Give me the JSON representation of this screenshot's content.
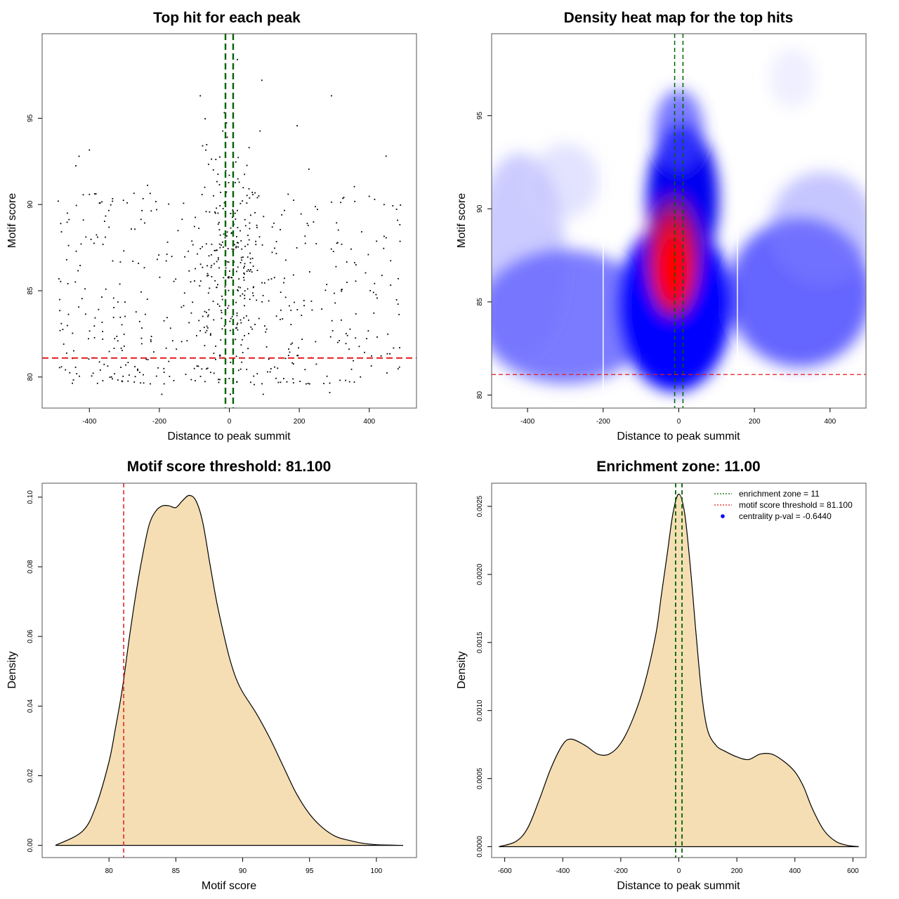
{
  "chart_data": [
    {
      "type": "scatter",
      "title": "Top hit for each peak",
      "xlabel": "Distance to peak summit",
      "ylabel": "Motif score",
      "xlim": [
        -535,
        535
      ],
      "ylim": [
        78.2,
        99.9
      ],
      "xticks": [
        "-400",
        "-200",
        "0",
        "200",
        "400"
      ],
      "yticks": [
        "80",
        "85",
        "90",
        "95"
      ],
      "vlines": [
        {
          "x": -11,
          "color": "#006400",
          "style": "dashed"
        },
        {
          "x": 11,
          "color": "#006400",
          "style": "dashed"
        }
      ],
      "hlines": [
        {
          "y": 81.1,
          "color": "#e31a1c",
          "style": "dashed"
        }
      ],
      "point_count": 700,
      "points_sample": [
        {
          "x": -193,
          "y": 79.0
        },
        {
          "x": -83,
          "y": 96.3
        },
        {
          "x": 23,
          "y": 98.4
        },
        {
          "x": 93,
          "y": 97.2
        },
        {
          "x": 292,
          "y": 96.3
        },
        {
          "x": 448,
          "y": 92.8
        },
        {
          "x": 287,
          "y": 79.1
        },
        {
          "x": -465,
          "y": 86.8
        },
        {
          "x": 483,
          "y": 85.7
        }
      ]
    },
    {
      "type": "heatmap",
      "title": "Density heat map for the top hits",
      "xlabel": "Distance to peak summit",
      "ylabel": "Motif score",
      "xlim": [
        -495,
        495
      ],
      "ylim": [
        79.3,
        99.4
      ],
      "xticks": [
        "-400",
        "-200",
        "0",
        "200",
        "400"
      ],
      "yticks": [
        "80",
        "85",
        "90",
        "95"
      ],
      "colormap": [
        "#ffffff",
        "#0000ff",
        "#ff0000"
      ],
      "density_peak": {
        "x": -15,
        "y": 86.7
      },
      "white_vlines": [
        -200,
        155
      ],
      "vlines": [
        {
          "x": -11,
          "color": "#006400",
          "style": "dashed"
        },
        {
          "x": 11,
          "color": "#006400",
          "style": "dashed"
        }
      ],
      "hlines": [
        {
          "y": 81.1,
          "color": "#e31a1c",
          "style": "dashed"
        }
      ]
    },
    {
      "type": "area",
      "title": "Motif score threshold: 81.100",
      "xlabel": "Motif score",
      "ylabel": "Density",
      "xlim": [
        75.0,
        103.0
      ],
      "ylim": [
        -0.0035,
        0.104
      ],
      "xticks": [
        "80",
        "85",
        "90",
        "95",
        "100"
      ],
      "yticks": [
        "0.00",
        "0.02",
        "0.04",
        "0.06",
        "0.08",
        "0.10"
      ],
      "fill": "#f5deb3",
      "x": [
        76,
        78,
        79,
        80,
        80.5,
        81,
        81.5,
        82,
        82.5,
        83,
        83.5,
        84,
        84.5,
        85,
        85.5,
        86,
        86.5,
        87,
        87.5,
        88,
        88.5,
        89,
        89.5,
        90,
        91,
        92,
        93,
        94,
        95,
        96,
        97,
        98,
        99,
        100,
        101,
        102
      ],
      "values": [
        0.0,
        0.004,
        0.011,
        0.024,
        0.034,
        0.045,
        0.059,
        0.072,
        0.083,
        0.092,
        0.096,
        0.0975,
        0.0975,
        0.097,
        0.099,
        0.1005,
        0.099,
        0.093,
        0.082,
        0.071,
        0.062,
        0.054,
        0.048,
        0.044,
        0.038,
        0.031,
        0.023,
        0.015,
        0.009,
        0.005,
        0.0025,
        0.0014,
        0.0006,
        0.0002,
        0.0001,
        0.0
      ],
      "vlines": [
        {
          "x": 81.1,
          "color": "#e31a1c",
          "style": "dashed"
        }
      ]
    },
    {
      "type": "area",
      "title": "Enrichment zone: 11.00",
      "xlabel": "Distance to peak summit",
      "ylabel": "Density",
      "xlim": [
        -645,
        645
      ],
      "ylim": [
        -8e-05,
        0.00267
      ],
      "xticks": [
        "-600",
        "-400",
        "-200",
        "0",
        "200",
        "400",
        "600"
      ],
      "yticks": [
        "0.0000",
        "0.0005",
        "0.0010",
        "0.0015",
        "0.0020",
        "0.0025"
      ],
      "fill": "#f5deb3",
      "x": [
        -620,
        -560,
        -520,
        -480,
        -440,
        -400,
        -370,
        -320,
        -280,
        -240,
        -200,
        -160,
        -120,
        -80,
        -60,
        -40,
        -20,
        0,
        20,
        40,
        60,
        80,
        100,
        130,
        160,
        200,
        240,
        280,
        320,
        360,
        400,
        430,
        460,
        500,
        540,
        580,
        620
      ],
      "values": [
        0.0,
        4e-05,
        0.00014,
        0.00035,
        0.00058,
        0.00075,
        0.00079,
        0.00074,
        0.00068,
        0.00068,
        0.00076,
        0.00093,
        0.00118,
        0.00155,
        0.00185,
        0.00215,
        0.00245,
        0.00259,
        0.00245,
        0.00205,
        0.00155,
        0.0011,
        0.00085,
        0.00074,
        0.0007,
        0.00066,
        0.00064,
        0.00068,
        0.00068,
        0.00063,
        0.00055,
        0.00044,
        0.00028,
        0.00012,
        4e-05,
        1e-05,
        0.0
      ],
      "vlines": [
        {
          "x": -11,
          "color": "#006400",
          "style": "dashed"
        },
        {
          "x": 11,
          "color": "#006400",
          "style": "dashed"
        }
      ],
      "legend": {
        "position": "top-right",
        "entries": [
          {
            "label": "enrichment zone = 11",
            "kind": "line",
            "color": "#006400"
          },
          {
            "label": "motif score threshold = 81.100",
            "kind": "line",
            "color": "#e31a1c"
          },
          {
            "label": "centrality p-val = -0.6440",
            "kind": "point",
            "color": "#0000ff"
          }
        ]
      }
    }
  ]
}
